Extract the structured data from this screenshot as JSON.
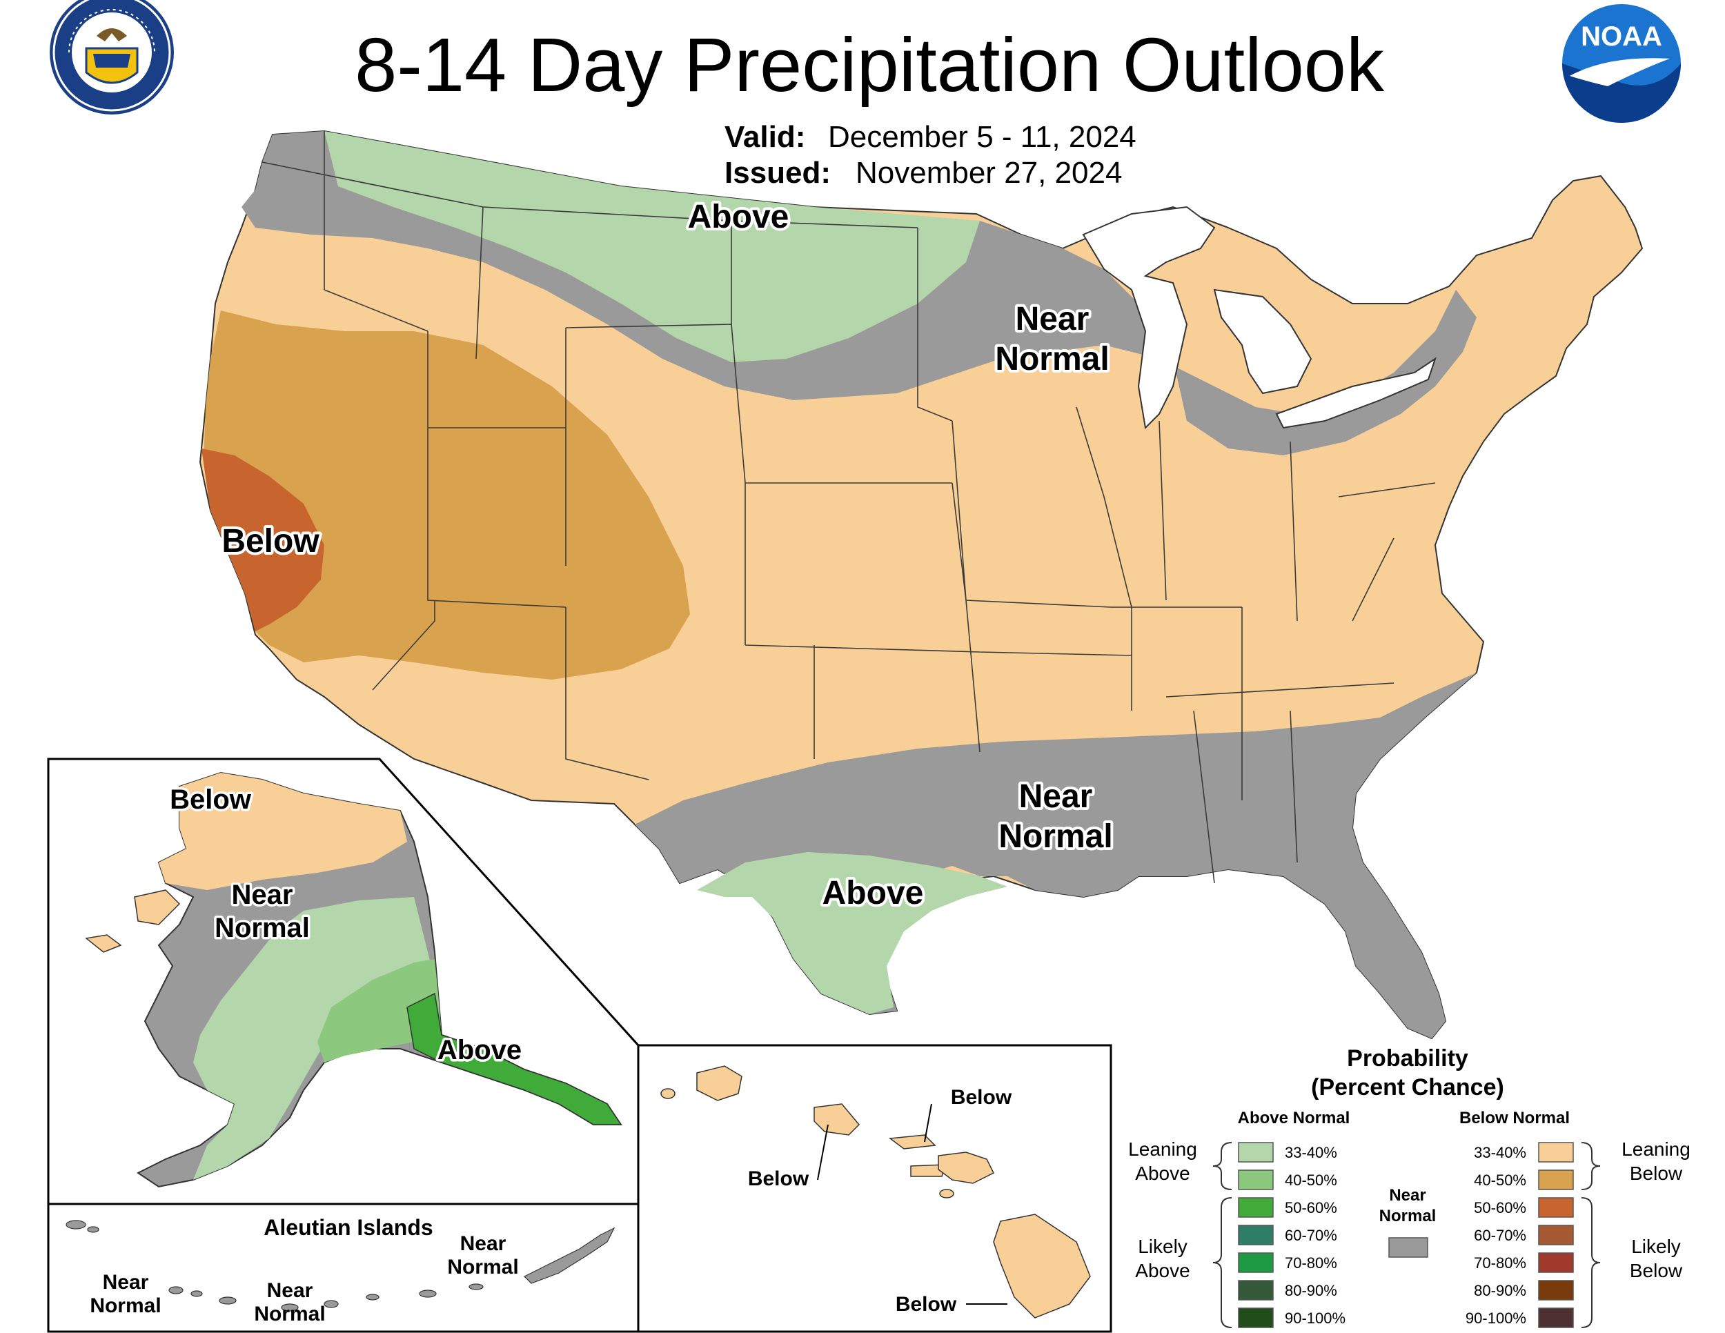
{
  "title": "8-14 Day Precipitation Outlook",
  "valid_label": "Valid:",
  "valid_value": "December 5 - 11, 2024",
  "issued_label": "Issued:",
  "issued_value": "November 27, 2024",
  "logos": {
    "commerce_seal_text_top": "DEPARTMENT OF COMMERCE",
    "commerce_seal_text_bottom": "UNITED STATES OF AMERICA",
    "noaa_text": "NOAA"
  },
  "colors": {
    "near_normal": "#9a9a9a",
    "above_33_40": "#b3d6ab",
    "above_40_50": "#8cc97e",
    "above_50_60": "#41ab3a",
    "above_60_70": "#2e7d66",
    "above_70_80": "#1e9a44",
    "above_80_90": "#345a3a",
    "above_90_100": "#204d1a",
    "below_33_40": "#f9cf98",
    "below_40_50": "#d9a24f",
    "below_50_60": "#c8652f",
    "below_60_70": "#a55a34",
    "below_70_80": "#a03a2c",
    "below_80_90": "#7a3b0c",
    "below_90_100": "#4e3032"
  },
  "conus_labels": {
    "above_north": "Above",
    "near_north_1": "Near",
    "near_north_2": "Normal",
    "below_west": "Below",
    "near_south_1": "Near",
    "near_south_2": "Normal",
    "above_texas": "Above"
  },
  "alaska_labels": {
    "below": "Below",
    "near_1": "Near",
    "near_2": "Normal",
    "above": "Above"
  },
  "aleutian": {
    "title": "Aleutian Islands",
    "west_1": "Near",
    "west_2": "Normal",
    "mid_1": "Near",
    "mid_2": "Normal",
    "east_1": "Near",
    "east_2": "Normal"
  },
  "hawaii_labels": {
    "kauai": "Below",
    "oahu": "Below",
    "big_island": "Below"
  },
  "legend": {
    "heading_1": "Probability",
    "heading_2": "(Percent Chance)",
    "above_header": "Above Normal",
    "below_header": "Below Normal",
    "near_1": "Near",
    "near_2": "Normal",
    "leaning_above_1": "Leaning",
    "leaning_above_2": "Above",
    "likely_above_1": "Likely",
    "likely_above_2": "Above",
    "leaning_below_1": "Leaning",
    "leaning_below_2": "Below",
    "likely_below_1": "Likely",
    "likely_below_2": "Below",
    "ranges": [
      "33-40%",
      "40-50%",
      "50-60%",
      "60-70%",
      "70-80%",
      "80-90%",
      "90-100%"
    ]
  }
}
